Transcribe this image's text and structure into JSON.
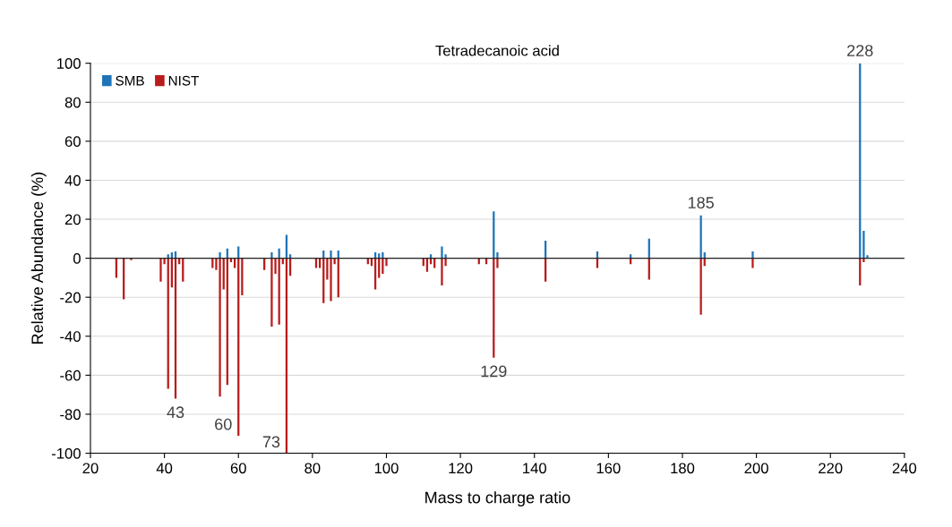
{
  "chart_data": {
    "type": "bar",
    "title": "Tetradecanoic acid",
    "xlabel": "Mass to charge ratio",
    "ylabel": "Relative Abundance (%)",
    "series": [
      {
        "name": "SMB",
        "color": "#1f74b8",
        "x": [
          41,
          42,
          43,
          55,
          57,
          60,
          69,
          71,
          73,
          74,
          83,
          85,
          87,
          97,
          98,
          99,
          112,
          115,
          116,
          129,
          130,
          143,
          157,
          166,
          171,
          185,
          186,
          199,
          228,
          229,
          230
        ],
        "values": [
          2,
          3,
          3.5,
          3,
          5,
          6,
          3,
          5,
          12,
          2,
          4,
          4,
          4,
          3,
          2.5,
          3,
          2,
          6,
          2,
          24,
          3,
          9,
          3.5,
          2,
          10,
          22,
          3,
          3.5,
          100,
          14,
          1.5
        ]
      },
      {
        "name": "NIST",
        "color": "#b81c1c",
        "x": [
          27,
          29,
          31,
          39,
          40,
          41,
          42,
          43,
          44,
          45,
          53,
          54,
          55,
          56,
          57,
          58,
          59,
          60,
          61,
          67,
          69,
          70,
          71,
          72,
          73,
          74,
          81,
          82,
          83,
          84,
          85,
          86,
          87,
          95,
          96,
          97,
          98,
          99,
          100,
          110,
          111,
          112,
          113,
          115,
          116,
          125,
          127,
          129,
          130,
          143,
          157,
          166,
          171,
          185,
          186,
          199,
          228,
          229
        ],
        "values": [
          -10,
          -21,
          -1,
          -12,
          -3,
          -67,
          -15,
          -72,
          -3,
          -12,
          -5,
          -6,
          -71,
          -16,
          -65,
          -2,
          -5,
          -91,
          -19,
          -6,
          -35,
          -8,
          -34,
          -3,
          -100,
          -9,
          -5,
          -5,
          -23,
          -11,
          -22,
          -3,
          -20,
          -3,
          -4,
          -16,
          -10,
          -8,
          -4,
          -4,
          -7,
          -3,
          -5,
          -14,
          -4,
          -3,
          -3,
          -51,
          -5,
          -12,
          -5,
          -3,
          -11,
          -29,
          -4,
          -5,
          -14,
          -2
        ]
      }
    ],
    "xlim": [
      20,
      240
    ],
    "xticks": [
      20,
      40,
      60,
      80,
      100,
      120,
      140,
      160,
      180,
      200,
      220,
      240
    ],
    "ylim": [
      -100,
      100
    ],
    "yticks": [
      -100,
      -80,
      -60,
      -40,
      -20,
      0,
      20,
      40,
      60,
      80,
      100
    ],
    "grid": "y",
    "legend": "top left",
    "ref_lines": [
      {
        "axis": "y",
        "value": 0,
        "color": "#222222"
      }
    ],
    "annotations": [
      {
        "text": "43",
        "x": 43,
        "y": -72
      },
      {
        "text": "60",
        "x": 60,
        "y": -91
      },
      {
        "text": "73",
        "x": 73,
        "y": -100
      },
      {
        "text": "129",
        "x": 129,
        "y": -51
      },
      {
        "text": "185",
        "x": 185,
        "y": 22
      },
      {
        "text": "228",
        "x": 228,
        "y": 100
      }
    ]
  }
}
